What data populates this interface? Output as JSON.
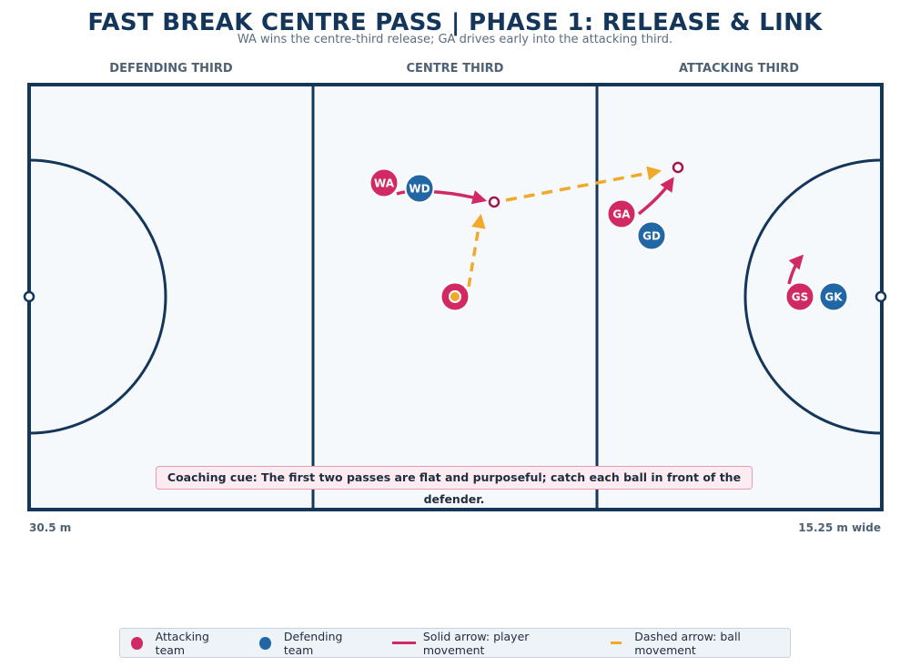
{
  "title": "FAST BREAK CENTRE PASS | PHASE 1: RELEASE & LINK",
  "subtitle": "WA wins the centre-third release; GA drives early into the attacking third.",
  "zones": {
    "defending": "DEFENDING THIRD",
    "centre": "CENTRE THIRD",
    "attacking": "ATTACKING THIRD"
  },
  "dimensions": {
    "length": "30.5 m",
    "width": "15.25 m wide"
  },
  "coaching_cue": "Coaching cue: The first two passes are flat and purposeful; catch each ball in front of the defender.",
  "colors": {
    "attacking": "#d12a63",
    "defending": "#2166a5",
    "ball": "#f0a92a",
    "court_line": "#14365a",
    "court_fill": "#f6f9fc"
  },
  "players": {
    "wa": "WA",
    "wd": "WD",
    "ga": "GA",
    "gd": "GD",
    "gs": "GS",
    "gk": "GK"
  },
  "legend": {
    "attacking": "Attacking team",
    "defending": "Defending team",
    "player_movement": "Solid arrow: player movement",
    "ball_movement": "Dashed arrow: ball movement"
  }
}
